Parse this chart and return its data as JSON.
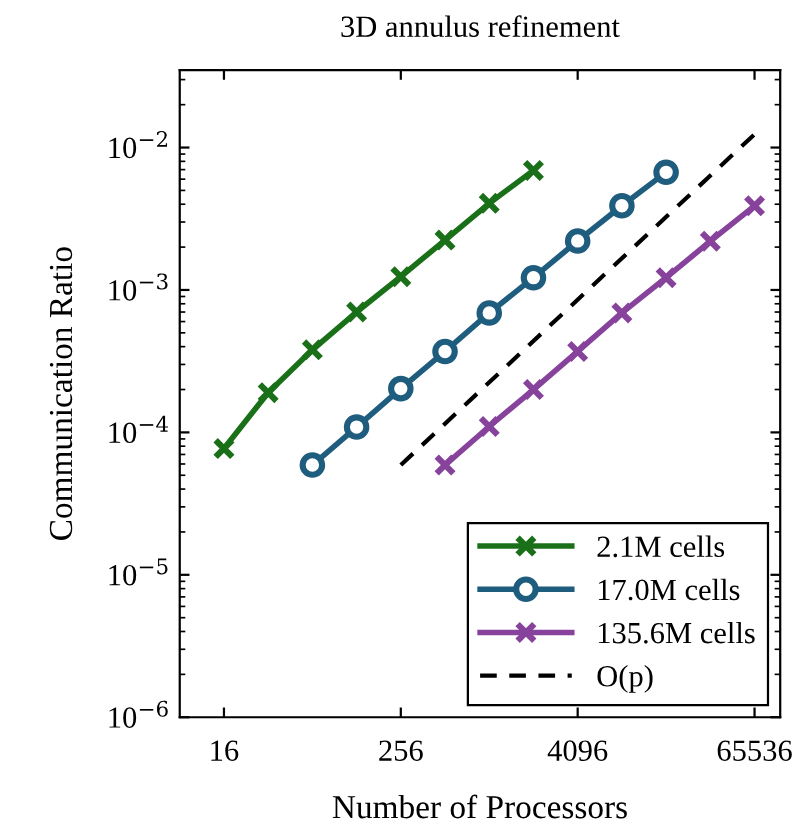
{
  "chart_data": {
    "type": "line",
    "title": "3D annulus refinement",
    "xlabel": "Number of Processors",
    "ylabel": "Communication Ratio",
    "log": "xy",
    "grid": false,
    "legend": "bottom right",
    "xlim": [
      8,
      98000
    ],
    "xticks": [
      16,
      256,
      4096,
      65536
    ],
    "ylim": [
      1e-06,
      0.035
    ],
    "yticks": [
      {
        "value": 1e-06,
        "label": "10$^{−6}$"
      },
      {
        "value": 1e-05,
        "label": "10$^{−5}$"
      },
      {
        "value": 0.0001,
        "label": "10$^{−4}$"
      },
      {
        "value": 0.001,
        "label": "10$^{−3}$"
      },
      {
        "value": 0.01,
        "label": "10$^{−2}$"
      }
    ],
    "series": [
      {
        "name": "2.1M cells",
        "color": "#1a7018",
        "marker": "cross",
        "line_style": "solid",
        "x": [
          16,
          32,
          64,
          128,
          256,
          512,
          1024,
          2048
        ],
        "values": [
          7.7e-05,
          0.00019,
          0.00038,
          0.0007,
          0.00124,
          0.00224,
          0.00406,
          0.0069
        ]
      },
      {
        "name": "17.0M cells",
        "color": "#1f5d7e",
        "marker": "circle",
        "line_style": "solid",
        "x": [
          64,
          128,
          256,
          512,
          1024,
          2048,
          4096,
          8192,
          16384
        ],
        "values": [
          5.9e-05,
          0.000109,
          0.000203,
          0.00037,
          0.00069,
          0.00122,
          0.00221,
          0.0039,
          0.0067
        ]
      },
      {
        "name": "135.6M cells",
        "color": "#87429c",
        "marker": "cross",
        "line_style": "solid",
        "x": [
          512,
          1024,
          2048,
          4096,
          8192,
          16384,
          32768,
          65536
        ],
        "values": [
          5.9e-05,
          0.00011,
          0.0002,
          0.00037,
          0.00069,
          0.00122,
          0.0022,
          0.0039
        ]
      },
      {
        "name": "O(p)",
        "color": "#000000",
        "marker": "none",
        "line_style": "dashed",
        "x": [
          256,
          65536
        ],
        "values": [
          5.9e-05,
          0.0124
        ]
      }
    ]
  }
}
